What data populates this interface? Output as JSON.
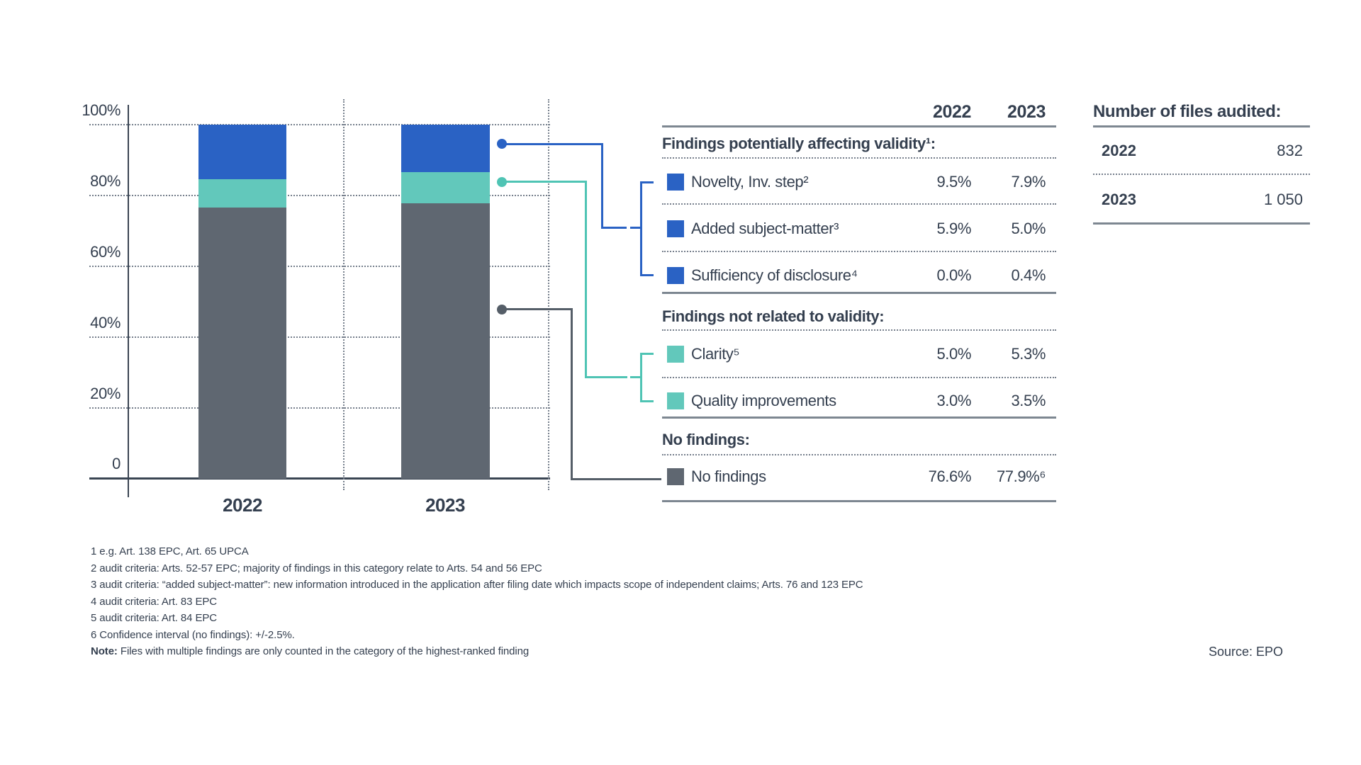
{
  "chart_data": {
    "type": "stacked-bar-percent",
    "title": "",
    "categories": [
      "2022",
      "2023"
    ],
    "series": [
      {
        "name": "No findings",
        "color": "#5F6771",
        "values": [
          76.6,
          77.9
        ]
      },
      {
        "name": "Findings not related to validity",
        "color": "#62C8BB",
        "values": [
          8.0,
          8.8
        ]
      },
      {
        "name": "Findings potentially affecting validity",
        "color": "#2A62C4",
        "values": [
          15.4,
          13.3
        ]
      }
    ],
    "y_ticks": [
      "100%",
      "80%",
      "60%",
      "40%",
      "20%",
      "0"
    ],
    "ylim": [
      0,
      100
    ],
    "grid": "horizontal dotted",
    "legend_position": "table at right"
  },
  "findings_table": {
    "col_headers": [
      "2022",
      "2023"
    ],
    "sections": [
      {
        "title": "Findings potentially affecting validity¹:",
        "rows": [
          {
            "label": "Novelty, Inv. step²",
            "swatch": "#2A62C4",
            "v2022": "9.5%",
            "v2023": "7.9%"
          },
          {
            "label": "Added subject-matter³",
            "swatch": "#2A62C4",
            "v2022": "5.9%",
            "v2023": "5.0%"
          },
          {
            "label": "Sufficiency of disclosure⁴",
            "swatch": "#2A62C4",
            "v2022": "0.0%",
            "v2023": "0.4%"
          }
        ]
      },
      {
        "title": "Findings not related to validity:",
        "rows": [
          {
            "label": "Clarity⁵",
            "swatch": "#62C8BB",
            "v2022": "5.0%",
            "v2023": "5.3%"
          },
          {
            "label": "Quality improvements",
            "swatch": "#62C8BB",
            "v2022": "3.0%",
            "v2023": "3.5%"
          }
        ]
      },
      {
        "title": "No findings:",
        "rows": [
          {
            "label": "No findings",
            "swatch": "#5F6771",
            "v2022": "76.6%",
            "v2023": "77.9%⁶"
          }
        ]
      }
    ]
  },
  "files_audited": {
    "title": "Number of files audited:",
    "rows": [
      {
        "year": "2022",
        "count": "832"
      },
      {
        "year": "2023",
        "count": "1 050"
      }
    ]
  },
  "footnotes": [
    "1 e.g. Art. 138 EPC, Art. 65 UPCA",
    "2 audit criteria: Arts. 52-57 EPC; majority of findings in this category relate to Arts. 54 and 56 EPC",
    "3 audit criteria: “added subject-matter”: new information introduced in the application after filing date which impacts scope of independent claims; Arts. 76 and 123 EPC",
    "4 audit criteria: Art. 83 EPC",
    "5 audit criteria: Art. 84 EPC",
    "6 Confidence interval (no findings): +/-2.5%."
  ],
  "note": {
    "label": "Note:",
    "text": " Files with multiple findings are only counted in the category of the highest-ranked finding"
  },
  "source": "Source: EPO",
  "colors": {
    "validity_blue": "#2A62C4",
    "non_validity_teal": "#62C8BB",
    "teal_connector": "#4FC4B4",
    "no_findings_gray": "#5F6771",
    "gray_connector": "#555E68",
    "text_navy": "#343F4F",
    "axis_navy": "#3A4553",
    "divider_gray": "#7D8791"
  }
}
